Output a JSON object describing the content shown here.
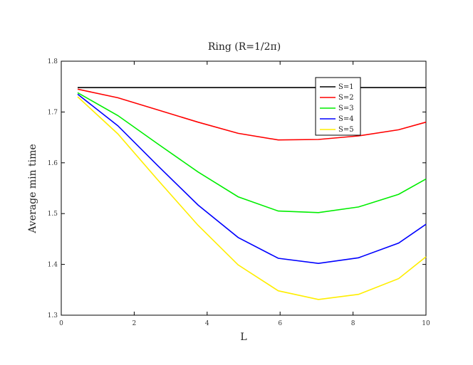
{
  "chart_data": {
    "type": "line",
    "title": "Ring (R=1/2π)",
    "xlabel": "L",
    "ylabel": "Average min time",
    "xlim": [
      0,
      10
    ],
    "ylim": [
      1.3,
      1.8
    ],
    "xticks": [
      0,
      2,
      4,
      6,
      8,
      10
    ],
    "yticks": [
      1.3,
      1.4,
      1.5,
      1.6,
      1.7,
      1.8
    ],
    "xtick_labels": [
      "0",
      "2",
      "4",
      "6",
      "8",
      "10"
    ],
    "ytick_labels": [
      "1.3",
      "1.4",
      "1.5",
      "1.6",
      "1.7",
      "1.8"
    ],
    "grid": false,
    "legend_position": "top-right",
    "x": [
      0.45,
      1.55,
      2.65,
      3.75,
      4.85,
      5.95,
      7.05,
      8.15,
      9.25,
      10.0
    ],
    "series": [
      {
        "name": "S=1",
        "color": "#000000",
        "values": [
          1.748,
          1.748,
          1.748,
          1.748,
          1.748,
          1.748,
          1.748,
          1.748,
          1.748,
          1.748
        ]
      },
      {
        "name": "S=2",
        "color": "#ff0000",
        "values": [
          1.745,
          1.728,
          1.704,
          1.68,
          1.658,
          1.645,
          1.646,
          1.653,
          1.665,
          1.68
        ]
      },
      {
        "name": "S=3",
        "color": "#00ee00",
        "values": [
          1.738,
          1.693,
          1.637,
          1.582,
          1.533,
          1.505,
          1.502,
          1.513,
          1.538,
          1.568
        ]
      },
      {
        "name": "S=4",
        "color": "#0000ff",
        "values": [
          1.735,
          1.673,
          1.594,
          1.517,
          1.453,
          1.412,
          1.402,
          1.413,
          1.442,
          1.479
        ]
      },
      {
        "name": "S=5",
        "color": "#ffee00",
        "values": [
          1.73,
          1.657,
          1.566,
          1.477,
          1.399,
          1.348,
          1.331,
          1.341,
          1.372,
          1.415
        ]
      }
    ]
  }
}
